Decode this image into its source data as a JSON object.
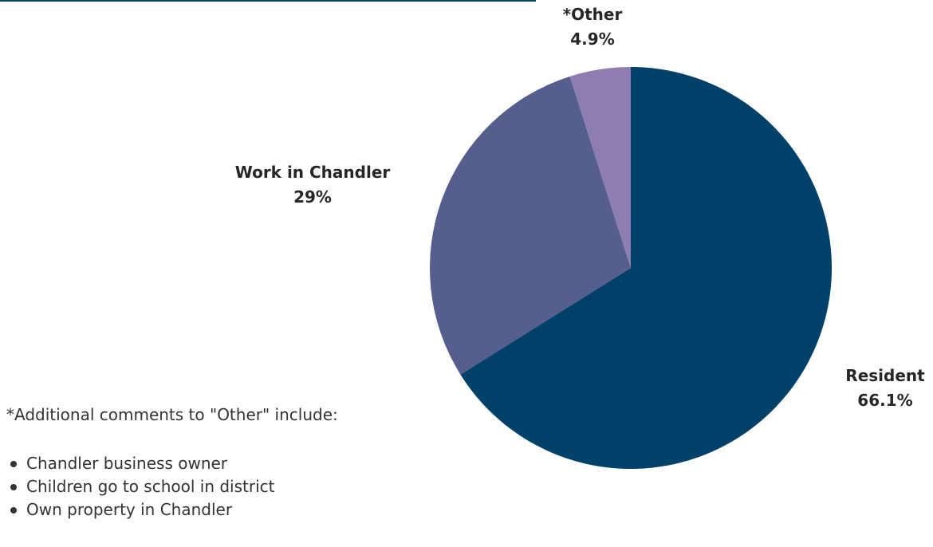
{
  "chart_data": {
    "type": "pie",
    "title": "",
    "slices": [
      {
        "label": "Resident",
        "value": 66.1,
        "value_label": "66.1%",
        "color": "#00416a"
      },
      {
        "label": "Work in Chandler",
        "value": 29,
        "value_label": "29%",
        "color": "#555e8c"
      },
      {
        "label": "*Other",
        "value": 4.9,
        "value_label": "4.9%",
        "color": "#8e7db0"
      }
    ],
    "start": "12 o'clock",
    "direction": "clockwise",
    "legend": "none"
  },
  "notes": {
    "heading": "*Additional comments to \"Other\" include:",
    "items": [
      "Chandler business owner",
      "Children go to school in district",
      "Own property in Chandler"
    ]
  },
  "colors": {
    "top_rule": "#003f66",
    "text": "#333333"
  }
}
